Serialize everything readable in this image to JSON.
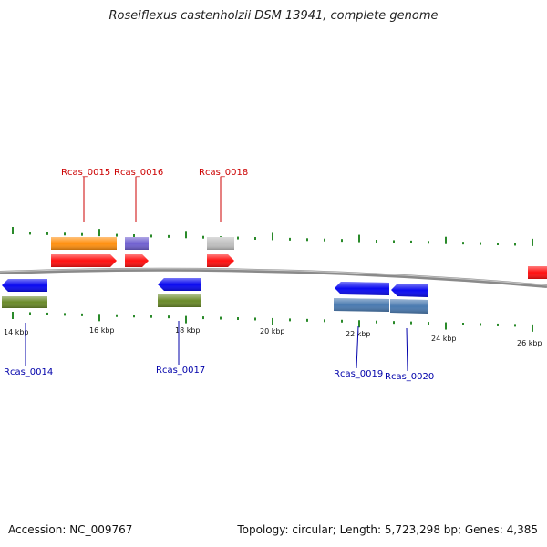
{
  "title": "Roseiflexus castenholzii DSM 13941, complete genome",
  "footer": {
    "accession": "Accession: NC_009767",
    "summary": "Topology: circular; Length: 5,723,298 bp; Genes: 4,385"
  },
  "colors": {
    "backbone": "#8a8a8a",
    "tick": "#2a8a2a",
    "forward_label": "#cc0000",
    "reverse_label": "#0000aa",
    "forward_cds": "#ff1010",
    "reverse_cds": "#0a0af0",
    "cog_orange": "#ff9010",
    "cog_purple": "#7060d0",
    "cog_grey": "#c0c0c0",
    "cog_olive": "#6a8a2a",
    "cog_steel": "#4a7ab0"
  },
  "scale": {
    "tick_labels": [
      "14 kbp",
      "16 kbp",
      "18 kbp",
      "20 kbp",
      "22 kbp",
      "24 kbp",
      "26 kbp"
    ]
  },
  "genes": {
    "forward": [
      "Rcas_0015",
      "Rcas_0016",
      "Rcas_0018"
    ],
    "reverse": [
      "Rcas_0014",
      "Rcas_0017",
      "Rcas_0019",
      "Rcas_0020"
    ]
  }
}
